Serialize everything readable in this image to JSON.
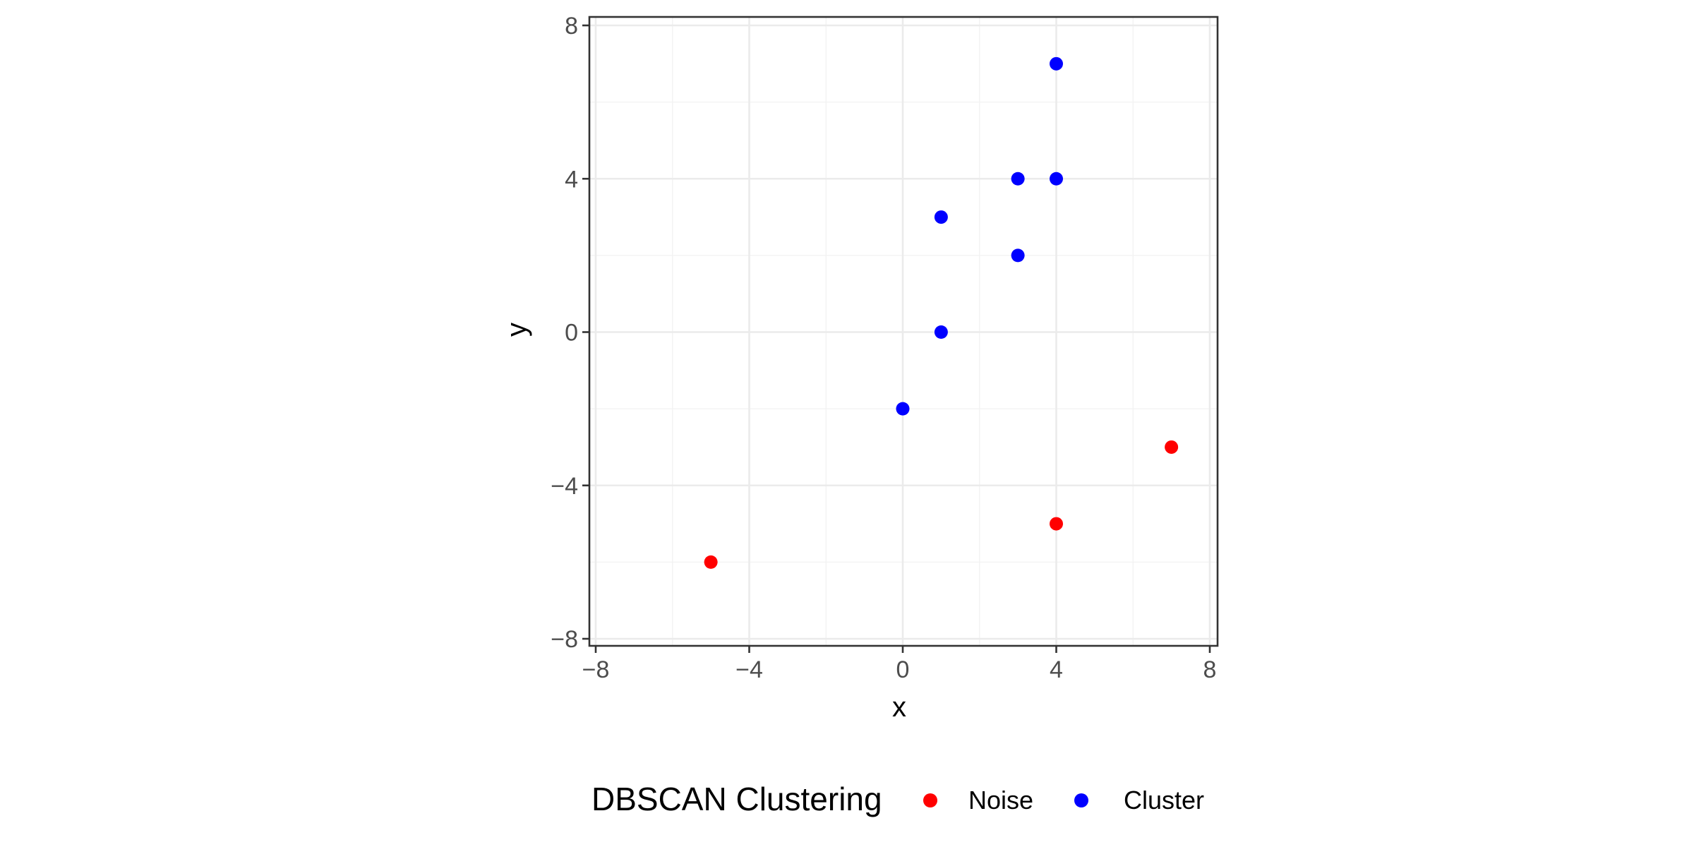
{
  "chart_data": {
    "type": "scatter",
    "xlabel": "x",
    "ylabel": "y",
    "xlim": [
      -8,
      8
    ],
    "ylim": [
      -8,
      8
    ],
    "x_ticks": [
      -8,
      -4,
      0,
      4,
      8
    ],
    "y_ticks": [
      -8,
      -4,
      0,
      4,
      8
    ],
    "x_tick_labels": [
      "−8",
      "−4",
      "0",
      "4",
      "8"
    ],
    "y_tick_labels": [
      "−8",
      "−4",
      "0",
      "4",
      "8"
    ],
    "grid": true,
    "legend": {
      "title": "DBSCAN Clustering",
      "placement": "bottom"
    },
    "series": [
      {
        "name": "Noise",
        "color": "#ff0000",
        "points": [
          {
            "x": -5,
            "y": -6
          },
          {
            "x": 4,
            "y": -5
          },
          {
            "x": 7,
            "y": -3
          }
        ]
      },
      {
        "name": "Cluster",
        "color": "#0000ff",
        "points": [
          {
            "x": 4,
            "y": 7
          },
          {
            "x": 3,
            "y": 4
          },
          {
            "x": 4,
            "y": 4
          },
          {
            "x": 1,
            "y": 3
          },
          {
            "x": 3,
            "y": 2
          },
          {
            "x": 1,
            "y": 0
          },
          {
            "x": 0,
            "y": -2
          }
        ]
      }
    ]
  }
}
